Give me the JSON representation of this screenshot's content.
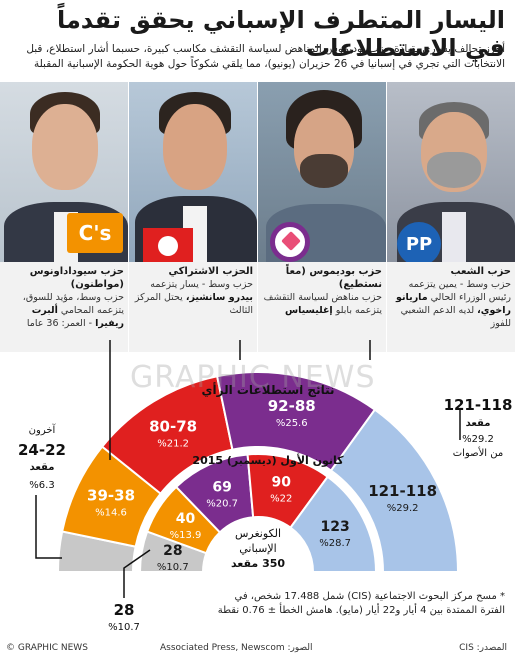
{
  "title": "اليسار المتطرف الإسباني يحقق تقدماً في الاستطلاعات",
  "intro": "أحرز تحالف يساري بقيادة حزب بوديموس المناهض لسياسة التقشف مكاسب كبيرة، حسبما أشار استطلاع، قبل الانتخابات التي تجري في إسبانيا في 26 حزيران (يونيو)، مما يلقي شكوكاً حول هوية الحكومة الإسبانية المقبلة",
  "watermark": "GRAPHIC NEWS",
  "parties": [
    {
      "key": "pp",
      "name": "حزب الشعب",
      "desc": "حزب وسط - يمين يتزعمه رئيس الوزراء الحالي",
      "leader": "ماريانو راخوي،",
      "desc2": "لديه الدعم الشعبي للفوز",
      "logo_text": "PP",
      "color": "#a8c4e8"
    },
    {
      "key": "podemos",
      "name": "حزب بوديموس (معاً نستطيع)",
      "desc": "حزب مناهض لسياسة التقشف يتزعمه بابلو",
      "leader": "إغليسياس",
      "desc2": "",
      "color": "#7b2d8e"
    },
    {
      "key": "psoe",
      "name": "الحزب الاشتراكي",
      "desc": "حزب وسط - يسار يتزعمه",
      "leader": "بيدرو سانشيز،",
      "desc2": "يحتل المركز الثالث",
      "color": "#e0201f"
    },
    {
      "key": "cs",
      "name": "حزب سيوداداونوس (مواطنون)",
      "desc": "حزب وسط، مؤيد للسوق، يتزعمه المحامي",
      "leader": "ألبرت ريفيرا",
      "desc2": "- العمر: 36 عاما",
      "logo_text": "C's",
      "color": "#f39200"
    }
  ],
  "chart_data": [
    {
      "type": "pie",
      "title": "نتائج استطلاعات الرأي",
      "subtitle": "",
      "slices": [
        {
          "name": "حزب الشعب",
          "seats": "121-118",
          "seats_label": "مقعد",
          "pct": 29.2,
          "pct_label": "%29.2",
          "extra": "من الأصوات",
          "color": "#a8c4e8"
        },
        {
          "name": "بوديموس",
          "seats": "92-88",
          "pct": 25.6,
          "pct_label": "%25.6",
          "color": "#7b2d8e"
        },
        {
          "name": "الاشتراكي",
          "seats": "80-78",
          "pct": 21.2,
          "pct_label": "%21.2",
          "color": "#e0201f"
        },
        {
          "name": "سيوداداونوس",
          "seats": "39-38",
          "pct": 14.6,
          "pct_label": "%14.6",
          "color": "#f39200"
        },
        {
          "name": "آخرون",
          "seats": "24-22",
          "seats_label": "مقعد",
          "pct": 6.3,
          "pct_label": "%6.3",
          "color": "#c8c8c8"
        }
      ]
    },
    {
      "type": "pie",
      "title": "كانون الأول (ديسمبر) 2015",
      "slices": [
        {
          "name": "حزب الشعب",
          "seats": 123,
          "pct": 28.7,
          "pct_label": "%28.7",
          "color": "#a8c4e8"
        },
        {
          "name": "الاشتراكي",
          "seats": 90,
          "pct": 22,
          "pct_label": "%22",
          "color": "#e0201f"
        },
        {
          "name": "بوديموس",
          "seats": 69,
          "pct": 20.7,
          "pct_label": "%20.7",
          "color": "#7b2d8e"
        },
        {
          "name": "سيوداداونوس",
          "seats": 40,
          "pct": 13.9,
          "pct_label": "%13.9",
          "color": "#f39200"
        },
        {
          "name": "آخرون",
          "seats": 28,
          "pct": 10.7,
          "pct_label": "%10.7",
          "color": "#c8c8c8"
        }
      ],
      "center_label_1": "الكونغرس",
      "center_label_2": "الإسباني",
      "center_label_3": "350 مقعد"
    }
  ],
  "note": "* مسح مركز البحوث الاجتماعية (CIS) شمل 17.488 شخص، في الفترة الممتدة بين 4 أيار و22 أيار (مايو). هامش الخطأ ± 0.76 نقطة",
  "footer": {
    "credit": "© GRAPHIC NEWS",
    "photos": "الصور: Associated Press, Newscom",
    "source": "المصدر: CIS"
  }
}
